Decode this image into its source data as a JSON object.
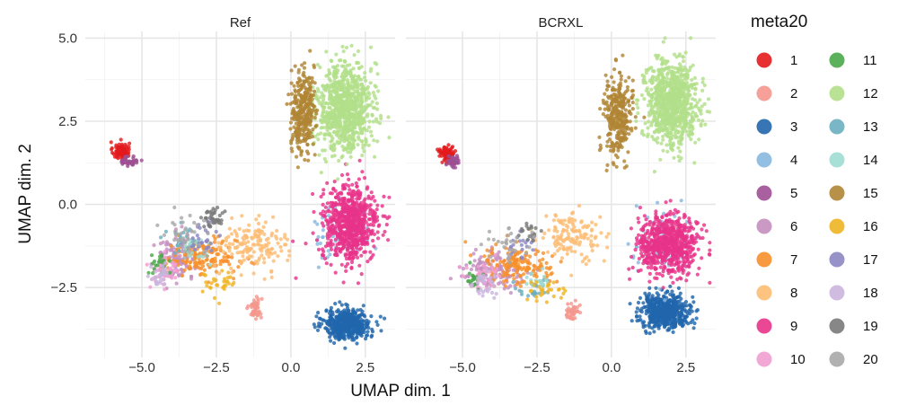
{
  "chart_data": {
    "type": "scatter",
    "facets": [
      {
        "label": "Ref",
        "clusters": [
          {
            "cluster": "1",
            "center": [
              -5.7,
              1.6
            ],
            "spread": [
              0.25,
              0.25
            ],
            "n": 90
          },
          {
            "cluster": "2",
            "center": [
              -1.2,
              -3.1
            ],
            "spread": [
              0.2,
              0.3
            ],
            "n": 50
          },
          {
            "cluster": "3",
            "center": [
              1.9,
              -3.6
            ],
            "spread": [
              0.7,
              0.4
            ],
            "n": 520
          },
          {
            "cluster": "4",
            "center": [
              1.7,
              -0.8
            ],
            "spread": [
              0.9,
              0.8
            ],
            "n": 60
          },
          {
            "cluster": "5",
            "center": [
              -5.4,
              1.3
            ],
            "spread": [
              0.25,
              0.15
            ],
            "n": 40
          },
          {
            "cluster": "6",
            "center": [
              -3.8,
              -1.6
            ],
            "spread": [
              0.7,
              0.6
            ],
            "n": 120
          },
          {
            "cluster": "7",
            "center": [
              -3.0,
              -1.6
            ],
            "spread": [
              1.1,
              0.5
            ],
            "n": 160
          },
          {
            "cluster": "8",
            "center": [
              -1.2,
              -1.2
            ],
            "spread": [
              1.0,
              0.7
            ],
            "n": 150
          },
          {
            "cluster": "9",
            "center": [
              2.0,
              -0.6
            ],
            "spread": [
              0.85,
              1.05
            ],
            "n": 720
          },
          {
            "cluster": "10",
            "center": [
              -4.2,
              -2.0
            ],
            "spread": [
              0.5,
              0.5
            ],
            "n": 40
          },
          {
            "cluster": "11",
            "center": [
              -4.5,
              -1.8
            ],
            "spread": [
              0.3,
              0.4
            ],
            "n": 25
          },
          {
            "cluster": "12",
            "center": [
              1.8,
              2.9
            ],
            "spread": [
              0.85,
              1.2
            ],
            "n": 900
          },
          {
            "cluster": "13",
            "center": [
              -3.6,
              -1.1
            ],
            "spread": [
              0.5,
              0.4
            ],
            "n": 30
          },
          {
            "cluster": "14",
            "center": [
              -3.1,
              -1.3
            ],
            "spread": [
              0.5,
              0.4
            ],
            "n": 20
          },
          {
            "cluster": "15",
            "center": [
              0.4,
              2.8
            ],
            "spread": [
              0.35,
              1.1
            ],
            "n": 320
          },
          {
            "cluster": "16",
            "center": [
              -2.4,
              -2.4
            ],
            "spread": [
              0.6,
              0.4
            ],
            "n": 30
          },
          {
            "cluster": "17",
            "center": [
              -2.9,
              -1.0
            ],
            "spread": [
              0.5,
              0.4
            ],
            "n": 30
          },
          {
            "cluster": "18",
            "center": [
              -4.4,
              -2.2
            ],
            "spread": [
              0.3,
              0.3
            ],
            "n": 30
          },
          {
            "cluster": "19",
            "center": [
              -2.6,
              -0.4
            ],
            "spread": [
              0.4,
              0.3
            ],
            "n": 40
          },
          {
            "cluster": "20",
            "center": [
              -3.4,
              -0.9
            ],
            "spread": [
              0.7,
              0.6
            ],
            "n": 40
          }
        ]
      },
      {
        "label": "BCRXL",
        "clusters": [
          {
            "cluster": "1",
            "center": [
              -5.5,
              1.5
            ],
            "spread": [
              0.25,
              0.2
            ],
            "n": 90
          },
          {
            "cluster": "2",
            "center": [
              -1.3,
              -3.2
            ],
            "spread": [
              0.2,
              0.25
            ],
            "n": 40
          },
          {
            "cluster": "3",
            "center": [
              1.8,
              -3.2
            ],
            "spread": [
              0.75,
              0.45
            ],
            "n": 560
          },
          {
            "cluster": "4",
            "center": [
              1.6,
              -1.2
            ],
            "spread": [
              0.9,
              0.9
            ],
            "n": 70
          },
          {
            "cluster": "5",
            "center": [
              -5.3,
              1.3
            ],
            "spread": [
              0.2,
              0.15
            ],
            "n": 40
          },
          {
            "cluster": "6",
            "center": [
              -4.0,
              -2.0
            ],
            "spread": [
              0.9,
              0.5
            ],
            "n": 140
          },
          {
            "cluster": "7",
            "center": [
              -3.1,
              -1.8
            ],
            "spread": [
              1.1,
              0.5
            ],
            "n": 150
          },
          {
            "cluster": "8",
            "center": [
              -1.3,
              -1.0
            ],
            "spread": [
              0.9,
              0.7
            ],
            "n": 130
          },
          {
            "cluster": "9",
            "center": [
              1.9,
              -1.2
            ],
            "spread": [
              0.9,
              0.8
            ],
            "n": 700
          },
          {
            "cluster": "10",
            "center": [
              -4.3,
              -2.2
            ],
            "spread": [
              0.6,
              0.4
            ],
            "n": 40
          },
          {
            "cluster": "11",
            "center": [
              -4.6,
              -2.2
            ],
            "spread": [
              0.3,
              0.3
            ],
            "n": 20
          },
          {
            "cluster": "12",
            "center": [
              2.0,
              3.0
            ],
            "spread": [
              0.8,
              1.15
            ],
            "n": 850
          },
          {
            "cluster": "13",
            "center": [
              -2.6,
              -2.5
            ],
            "spread": [
              0.5,
              0.3
            ],
            "n": 25
          },
          {
            "cluster": "14",
            "center": [
              -2.5,
              -2.3
            ],
            "spread": [
              0.5,
              0.3
            ],
            "n": 20
          },
          {
            "cluster": "15",
            "center": [
              0.2,
              2.6
            ],
            "spread": [
              0.45,
              1.05
            ],
            "n": 300
          },
          {
            "cluster": "16",
            "center": [
              -2.2,
              -2.6
            ],
            "spread": [
              0.6,
              0.3
            ],
            "n": 30
          },
          {
            "cluster": "17",
            "center": [
              -3.0,
              -1.2
            ],
            "spread": [
              0.5,
              0.4
            ],
            "n": 20
          },
          {
            "cluster": "18",
            "center": [
              -4.2,
              -2.4
            ],
            "spread": [
              0.4,
              0.3
            ],
            "n": 30
          },
          {
            "cluster": "19",
            "center": [
              -2.8,
              -0.8
            ],
            "spread": [
              0.4,
              0.3
            ],
            "n": 20
          },
          {
            "cluster": "20",
            "center": [
              -3.5,
              -1.2
            ],
            "spread": [
              0.8,
              0.6
            ],
            "n": 30
          }
        ]
      }
    ],
    "xlabel": "UMAP dim. 1",
    "ylabel": "UMAP dim. 2",
    "xlim": [
      -6.9,
      3.5
    ],
    "ylim": [
      -4.6,
      5.2
    ],
    "xticks": [
      -5.0,
      -2.5,
      0.0,
      2.5
    ],
    "xtick_labels": [
      "−5.0",
      "−2.5",
      "0.0",
      "2.5"
    ],
    "yticks": [
      -2.5,
      0.0,
      2.5,
      5.0
    ],
    "ytick_labels": [
      "−2.5",
      "0.0",
      "2.5",
      "5.0"
    ],
    "grid": true,
    "legend": {
      "title": "meta20",
      "position": "right",
      "entries": [
        "1",
        "2",
        "3",
        "4",
        "5",
        "6",
        "7",
        "8",
        "9",
        "10",
        "11",
        "12",
        "13",
        "14",
        "15",
        "16",
        "17",
        "18",
        "19",
        "20"
      ]
    },
    "colors": {
      "1": "#e31a1c",
      "2": "#f4978e",
      "3": "#2166ac",
      "4": "#87b8df",
      "5": "#9e4f94",
      "6": "#c48fbf",
      "7": "#f7902b",
      "8": "#fcbc73",
      "9": "#e8338a",
      "10": "#f09fd0",
      "11": "#4aa84a",
      "12": "#b2df8a",
      "13": "#6bafc0",
      "14": "#9fdbd1",
      "15": "#b08534",
      "16": "#f0b425",
      "17": "#8c87c2",
      "18": "#cbb5de",
      "19": "#7a7a7a",
      "20": "#a8a8a8"
    }
  }
}
